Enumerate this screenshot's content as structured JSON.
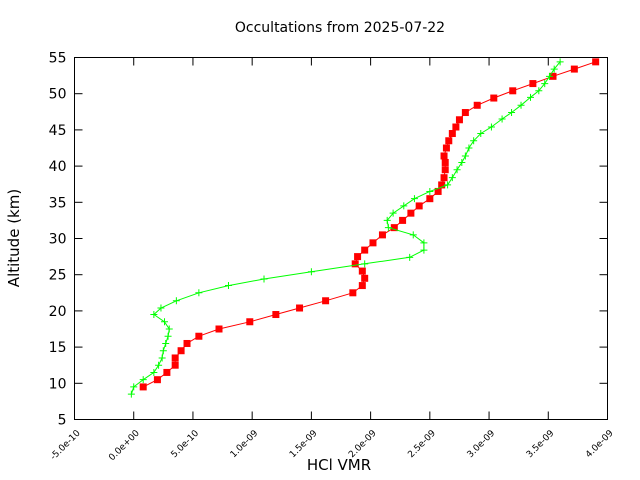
{
  "chart_data": {
    "type": "line",
    "title": "Occultations from 2025-07-22",
    "xlabel": "HCl VMR",
    "ylabel": "Altitude (km)",
    "xlim": [
      -5e-10,
      4e-09
    ],
    "ylim": [
      5,
      55
    ],
    "x_ticks": [
      -5e-10,
      0,
      5e-10,
      1e-09,
      1.5e-09,
      2e-09,
      2.5e-09,
      3e-09,
      3.5e-09,
      4e-09
    ],
    "x_tick_labels": [
      "-5.0e-10",
      "0.0e+00",
      "5.0e-10",
      "1.0e-09",
      "1.5e-09",
      "2.0e-09",
      "2.5e-09",
      "3.0e-09",
      "3.5e-09",
      "4.0e-09"
    ],
    "y_ticks": [
      5,
      10,
      15,
      20,
      25,
      30,
      35,
      40,
      45,
      50,
      55
    ],
    "y_tick_labels": [
      "5",
      "10",
      "15",
      "20",
      "25",
      "30",
      "35",
      "40",
      "45",
      "50",
      "55"
    ],
    "grid": false,
    "legend": "none",
    "series": [
      {
        "color": "#ff0000",
        "marker": "square",
        "points": [
          [
            8e-11,
            9.5
          ],
          [
            2e-10,
            10.5
          ],
          [
            2.8e-10,
            11.5
          ],
          [
            3.5e-10,
            12.5
          ],
          [
            3.5e-10,
            13.5
          ],
          [
            4e-10,
            14.5
          ],
          [
            4.5e-10,
            15.5
          ],
          [
            5.5e-10,
            16.5
          ],
          [
            7.2e-10,
            17.5
          ],
          [
            9.8e-10,
            18.5
          ],
          [
            1.2e-09,
            19.5
          ],
          [
            1.4e-09,
            20.4
          ],
          [
            1.62e-09,
            21.4
          ],
          [
            1.85e-09,
            22.5
          ],
          [
            1.93e-09,
            23.5
          ],
          [
            1.95e-09,
            24.5
          ],
          [
            1.93e-09,
            25.5
          ],
          [
            1.87e-09,
            26.5
          ],
          [
            1.89e-09,
            27.5
          ],
          [
            1.95e-09,
            28.4
          ],
          [
            2.02e-09,
            29.4
          ],
          [
            2.1e-09,
            30.5
          ],
          [
            2.2e-09,
            31.5
          ],
          [
            2.27e-09,
            32.5
          ],
          [
            2.34e-09,
            33.5
          ],
          [
            2.41e-09,
            34.5
          ],
          [
            2.5e-09,
            35.5
          ],
          [
            2.57e-09,
            36.5
          ],
          [
            2.6e-09,
            37.4
          ],
          [
            2.62e-09,
            38.4
          ],
          [
            2.63e-09,
            39.5
          ],
          [
            2.63e-09,
            40.5
          ],
          [
            2.62e-09,
            41.4
          ],
          [
            2.64e-09,
            42.5
          ],
          [
            2.66e-09,
            43.5
          ],
          [
            2.69e-09,
            44.5
          ],
          [
            2.72e-09,
            45.4
          ],
          [
            2.75e-09,
            46.4
          ],
          [
            2.8e-09,
            47.4
          ],
          [
            2.9e-09,
            48.4
          ],
          [
            3.04e-09,
            49.4
          ],
          [
            3.2e-09,
            50.4
          ],
          [
            3.37e-09,
            51.4
          ],
          [
            3.54e-09,
            52.4
          ],
          [
            3.72e-09,
            53.4
          ],
          [
            3.9e-09,
            54.4
          ]
        ]
      },
      {
        "color": "#00ff00",
        "marker": "plus",
        "points": [
          [
            -2e-11,
            8.5
          ],
          [
            0.0,
            9.5
          ],
          [
            8e-11,
            10.5
          ],
          [
            1.7e-10,
            11.5
          ],
          [
            2.1e-10,
            12.5
          ],
          [
            2.4e-10,
            13.5
          ],
          [
            2.5e-10,
            14.5
          ],
          [
            2.7e-10,
            15.5
          ],
          [
            2.9e-10,
            16.5
          ],
          [
            3e-10,
            17.5
          ],
          [
            2.6e-10,
            18.5
          ],
          [
            1.7e-10,
            19.5
          ],
          [
            2.3e-10,
            20.4
          ],
          [
            3.6e-10,
            21.4
          ],
          [
            5.5e-10,
            22.5
          ],
          [
            8e-10,
            23.5
          ],
          [
            1.1e-09,
            24.4
          ],
          [
            1.5e-09,
            25.4
          ],
          [
            1.95e-09,
            26.5
          ],
          [
            2.33e-09,
            27.4
          ],
          [
            2.45e-09,
            28.4
          ],
          [
            2.45e-09,
            29.4
          ],
          [
            2.36e-09,
            30.5
          ],
          [
            2.15e-09,
            31.5
          ],
          [
            2.14e-09,
            32.5
          ],
          [
            2.19e-09,
            33.5
          ],
          [
            2.28e-09,
            34.5
          ],
          [
            2.37e-09,
            35.5
          ],
          [
            2.5e-09,
            36.5
          ],
          [
            2.65e-09,
            37.4
          ],
          [
            2.69e-09,
            38.4
          ],
          [
            2.73e-09,
            39.5
          ],
          [
            2.77e-09,
            40.5
          ],
          [
            2.8e-09,
            41.4
          ],
          [
            2.83e-09,
            42.5
          ],
          [
            2.87e-09,
            43.5
          ],
          [
            2.93e-09,
            44.5
          ],
          [
            3.02e-09,
            45.4
          ],
          [
            3.11e-09,
            46.5
          ],
          [
            3.19e-09,
            47.4
          ],
          [
            3.27e-09,
            48.4
          ],
          [
            3.35e-09,
            49.5
          ],
          [
            3.42e-09,
            50.4
          ],
          [
            3.47e-09,
            51.4
          ],
          [
            3.51e-09,
            52.4
          ],
          [
            3.55e-09,
            53.4
          ],
          [
            3.6e-09,
            54.4
          ]
        ]
      }
    ]
  }
}
